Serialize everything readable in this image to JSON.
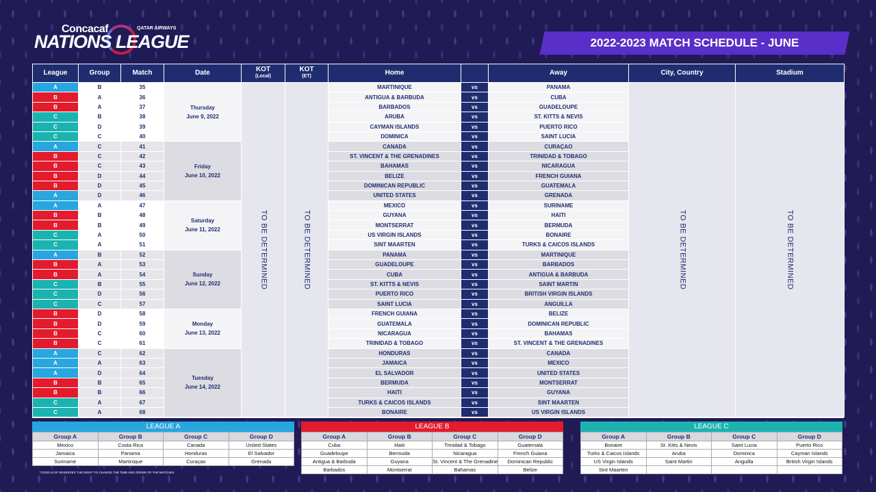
{
  "logo": {
    "concacaf": "Concacaf",
    "sponsor": "QATAR AIRWAYS",
    "nations": "NATIONS",
    "league": "LEAGUE"
  },
  "banner": "2022-2023 MATCH SCHEDULE - JUNE",
  "headers": {
    "league": "League",
    "group": "Group",
    "match": "Match",
    "date": "Date",
    "kot_local": "KOT",
    "kot_local_sub": "(Local)",
    "kot_et": "KOT",
    "kot_et_sub": "(ET)",
    "home": "Home",
    "away": "Away",
    "city": "City, Country",
    "stadium": "Stadium"
  },
  "tbd": "TO BE DETERMINED",
  "days": [
    {
      "d1": "Thursday",
      "d2": "June 9, 2022"
    },
    {
      "d1": "Friday",
      "d2": "June 10, 2022"
    },
    {
      "d1": "Saturday",
      "d2": "June 11, 2022"
    },
    {
      "d1": "Sunday",
      "d2": "June 12, 2022"
    },
    {
      "d1": "Monday",
      "d2": "June 13, 2022"
    },
    {
      "d1": "Tuesday",
      "d2": "June 14, 2022"
    }
  ],
  "matches": [
    {
      "day": 0,
      "league": "A",
      "group": "B",
      "match": "35",
      "home": "MARTINIQUE",
      "away": "PANAMA"
    },
    {
      "day": 0,
      "league": "B",
      "group": "A",
      "match": "36",
      "home": "ANTIGUA & BARBUDA",
      "away": "CUBA"
    },
    {
      "day": 0,
      "league": "B",
      "group": "A",
      "match": "37",
      "home": "BARBADOS",
      "away": "GUADELOUPE"
    },
    {
      "day": 0,
      "league": "C",
      "group": "B",
      "match": "38",
      "home": "ARUBA",
      "away": "ST. KITTS & NEVIS"
    },
    {
      "day": 0,
      "league": "C",
      "group": "D",
      "match": "39",
      "home": "CAYMAN ISLANDS",
      "away": "PUERTO RICO"
    },
    {
      "day": 0,
      "league": "C",
      "group": "C",
      "match": "40",
      "home": "DOMINICA",
      "away": "SAINT LUCIA"
    },
    {
      "day": 1,
      "league": "A",
      "group": "C",
      "match": "41",
      "home": "CANADA",
      "away": "CURAÇAO"
    },
    {
      "day": 1,
      "league": "B",
      "group": "C",
      "match": "42",
      "home": "ST. VINCENT & THE GRENADINES",
      "away": "TRINIDAD & TOBAGO"
    },
    {
      "day": 1,
      "league": "B",
      "group": "C",
      "match": "43",
      "home": "BAHAMAS",
      "away": "NICARAGUA"
    },
    {
      "day": 1,
      "league": "B",
      "group": "D",
      "match": "44",
      "home": "BELIZE",
      "away": "FRENCH GUIANA"
    },
    {
      "day": 1,
      "league": "B",
      "group": "D",
      "match": "45",
      "home": "DOMINICAN REPUBLIC",
      "away": "GUATEMALA"
    },
    {
      "day": 1,
      "league": "A",
      "group": "D",
      "match": "46",
      "home": "UNITED STATES",
      "away": "GRENADA"
    },
    {
      "day": 2,
      "league": "A",
      "group": "A",
      "match": "47",
      "home": "MEXICO",
      "away": "SURINAME"
    },
    {
      "day": 2,
      "league": "B",
      "group": "B",
      "match": "48",
      "home": "GUYANA",
      "away": "HAITI"
    },
    {
      "day": 2,
      "league": "B",
      "group": "B",
      "match": "49",
      "home": "MONTSERRAT",
      "away": "BERMUDA"
    },
    {
      "day": 2,
      "league": "C",
      "group": "A",
      "match": "50",
      "home": "US VIRGIN ISLANDS",
      "away": "BONAIRE"
    },
    {
      "day": 2,
      "league": "C",
      "group": "A",
      "match": "51",
      "home": "SINT MAARTEN",
      "away": "TURKS & CAICOS ISLANDS"
    },
    {
      "day": 3,
      "league": "A",
      "group": "B",
      "match": "52",
      "home": "PANAMA",
      "away": "MARTINIQUE"
    },
    {
      "day": 3,
      "league": "B",
      "group": "A",
      "match": "53",
      "home": "GUADELOUPE",
      "away": "BARBADOS"
    },
    {
      "day": 3,
      "league": "B",
      "group": "A",
      "match": "54",
      "home": "CUBA",
      "away": "ANTIGUA & BARBUDA"
    },
    {
      "day": 3,
      "league": "C",
      "group": "B",
      "match": "55",
      "home": "ST. KITTS & NEVIS",
      "away": "SAINT MARTIN"
    },
    {
      "day": 3,
      "league": "C",
      "group": "D",
      "match": "56",
      "home": "PUERTO RICO",
      "away": "BRITISH VIRGIN ISLANDS"
    },
    {
      "day": 3,
      "league": "C",
      "group": "C",
      "match": "57",
      "home": "SAINT LUCIA",
      "away": "ANGUILLA"
    },
    {
      "day": 4,
      "league": "B",
      "group": "D",
      "match": "58",
      "home": "FRENCH GUIANA",
      "away": "BELIZE"
    },
    {
      "day": 4,
      "league": "B",
      "group": "D",
      "match": "59",
      "home": "GUATEMALA",
      "away": "DOMINICAN REPUBLIC"
    },
    {
      "day": 4,
      "league": "B",
      "group": "C",
      "match": "60",
      "home": "NICARAGUA",
      "away": "BAHAMAS"
    },
    {
      "day": 4,
      "league": "B",
      "group": "C",
      "match": "61",
      "home": "TRINIDAD & TOBAGO",
      "away": "ST. VINCENT & THE GRENADINES"
    },
    {
      "day": 5,
      "league": "A",
      "group": "C",
      "match": "62",
      "home": "HONDURAS",
      "away": "CANADA"
    },
    {
      "day": 5,
      "league": "A",
      "group": "A",
      "match": "63",
      "home": "JAMAICA",
      "away": "MEXICO"
    },
    {
      "day": 5,
      "league": "A",
      "group": "D",
      "match": "64",
      "home": "EL SALVADOR",
      "away": "UNITED STATES"
    },
    {
      "day": 5,
      "league": "B",
      "group": "B",
      "match": "65",
      "home": "BERMUDA",
      "away": "MONTSERRAT"
    },
    {
      "day": 5,
      "league": "B",
      "group": "B",
      "match": "66",
      "home": "HAITI",
      "away": "GUYANA"
    },
    {
      "day": 5,
      "league": "C",
      "group": "A",
      "match": "67",
      "home": "TURKS & CAICOS ISLANDS",
      "away": "SINT MAARTEN"
    },
    {
      "day": 5,
      "league": "C",
      "group": "A",
      "match": "68",
      "home": "BONAIRE",
      "away": "US VIRGIN ISLANDS"
    }
  ],
  "vs": "vs",
  "league_colors": {
    "A": "#27a6df",
    "B": "#e21b2d",
    "C": "#1bb3b0"
  },
  "group_tables": [
    {
      "title": "LEAGUE A",
      "color": "#27a6df",
      "groups": [
        "Group A",
        "Group B",
        "Group C",
        "Group D"
      ],
      "rows": [
        [
          "Mexico",
          "Costa Rica",
          "Canada",
          "United States"
        ],
        [
          "Jamaica",
          "Panama",
          "Honduras",
          "El Salvador"
        ],
        [
          "Suriname",
          "Martinique",
          "Curaçao",
          "Grenada"
        ]
      ]
    },
    {
      "title": "LEAGUE B",
      "color": "#e21b2d",
      "groups": [
        "Group A",
        "Group B",
        "Group C",
        "Group D"
      ],
      "rows": [
        [
          "Cuba",
          "Haiti",
          "Trinidad & Tobago",
          "Guatemala"
        ],
        [
          "Guadeloupe",
          "Bermuda",
          "Nicaragua",
          "French Guiana"
        ],
        [
          "Antigua & Barbuda",
          "Guyana",
          "St. Vincent & The Grenadines",
          "Dominican Republic"
        ],
        [
          "Barbados",
          "Montserrat",
          "Bahamas",
          "Belize"
        ]
      ]
    },
    {
      "title": "LEAGUE C",
      "color": "#1bb3b0",
      "groups": [
        "Group A",
        "Group B",
        "Group C",
        "Group D"
      ],
      "rows": [
        [
          "Bonaire",
          "St. Kitts & Nevis",
          "Saint Lucia",
          "Puerto Rico"
        ],
        [
          "Turks & Caicos Islands",
          "Aruba",
          "Dominica",
          "Cayman Islands"
        ],
        [
          "US Virgin Islands",
          "Saint Martin",
          "Anguilla",
          "British Virgin Islands"
        ],
        [
          "Sint Maarten",
          "",
          "",
          ""
        ]
      ]
    }
  ],
  "footnote": "*CONCACAF RESERVES THE RIGHT TO CHANGE THE TIME AND ORDER OF THE MATCHES"
}
